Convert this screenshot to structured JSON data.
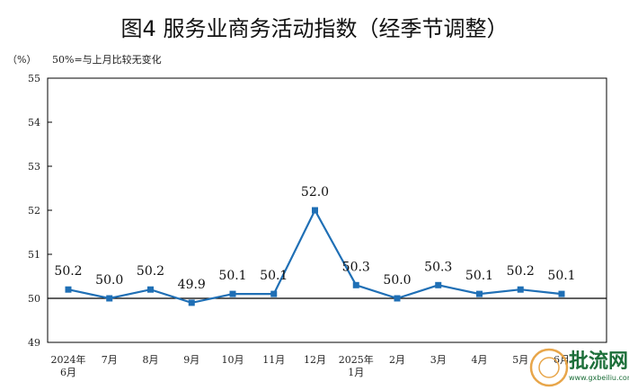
{
  "chart_data": {
    "type": "line",
    "title": "图4  服务业商务活动指数（经季节调整）",
    "ylabel": "（%）",
    "note": "50%=与上月比较无变化",
    "ylim": [
      49,
      55
    ],
    "yticks": [
      49,
      50,
      51,
      52,
      53,
      54,
      55
    ],
    "categories": [
      [
        "2024年",
        "6月"
      ],
      [
        "7月"
      ],
      [
        "8月"
      ],
      [
        "9月"
      ],
      [
        "10月"
      ],
      [
        "11月"
      ],
      [
        "12月"
      ],
      [
        "2025年",
        "1月"
      ],
      [
        "2月"
      ],
      [
        "3月"
      ],
      [
        "4月"
      ],
      [
        "5月"
      ],
      [
        "6月"
      ]
    ],
    "values": [
      50.2,
      50.0,
      50.2,
      49.9,
      50.1,
      50.1,
      52.0,
      50.3,
      50.0,
      50.3,
      50.1,
      50.2,
      50.1
    ],
    "data_labels": [
      "50.2",
      "50.0",
      "50.2",
      "49.9",
      "50.1",
      "50.1",
      "52.0",
      "50.3",
      "50.0",
      "50.3",
      "50.1",
      "50.2",
      "50.1"
    ],
    "reference_line": 50,
    "line_color": "#1f6fb5",
    "grid": false
  },
  "watermark": {
    "text": "批流网",
    "sub": "www.gxbeiliu.com",
    "color": "#1d6f3a",
    "seal_color": "#e8a64a"
  }
}
